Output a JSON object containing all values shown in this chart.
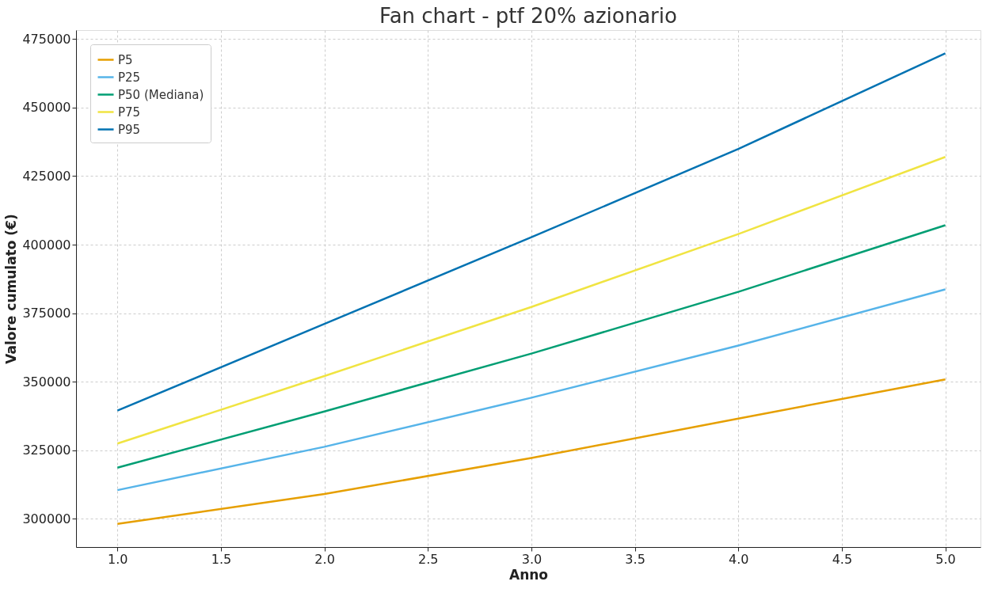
{
  "chart_data": {
    "type": "line",
    "title": "Fan chart - ptf 20% azionario",
    "xlabel": "Anno",
    "ylabel": "Valore cumulato (€)",
    "x": [
      1.0,
      2.0,
      3.0,
      4.0,
      5.0
    ],
    "series": [
      {
        "name": "P5",
        "color": "#e69f00",
        "values": [
          298200,
          309100,
          322200,
          336600,
          350900
        ]
      },
      {
        "name": "P25",
        "color": "#56b4e9",
        "values": [
          310500,
          326300,
          344200,
          363200,
          383700
        ]
      },
      {
        "name": "P50 (Mediana)",
        "color": "#009e73",
        "values": [
          318700,
          339200,
          360300,
          382800,
          407100
        ]
      },
      {
        "name": "P75",
        "color": "#f0e442",
        "values": [
          327500,
          352100,
          377300,
          403900,
          432000
        ]
      },
      {
        "name": "P95",
        "color": "#0072b2",
        "values": [
          339500,
          371100,
          402700,
          434900,
          469800
        ]
      }
    ],
    "xlim": [
      0.8,
      5.17
    ],
    "xticks": [
      {
        "value": 1.0,
        "label": "1.0"
      },
      {
        "value": 1.5,
        "label": "1.5"
      },
      {
        "value": 2.0,
        "label": "2.0"
      },
      {
        "value": 2.5,
        "label": "2.5"
      },
      {
        "value": 3.0,
        "label": "3.0"
      },
      {
        "value": 3.5,
        "label": "3.5"
      },
      {
        "value": 4.0,
        "label": "4.0"
      },
      {
        "value": 4.5,
        "label": "4.5"
      },
      {
        "value": 5.0,
        "label": "5.0"
      }
    ],
    "ylim": [
      289750,
      478250
    ],
    "yticks": [
      300000,
      325000,
      350000,
      375000,
      400000,
      425000,
      450000,
      475000
    ],
    "grid": true,
    "legend": "top left",
    "marker": "none",
    "line_style": "solid"
  }
}
